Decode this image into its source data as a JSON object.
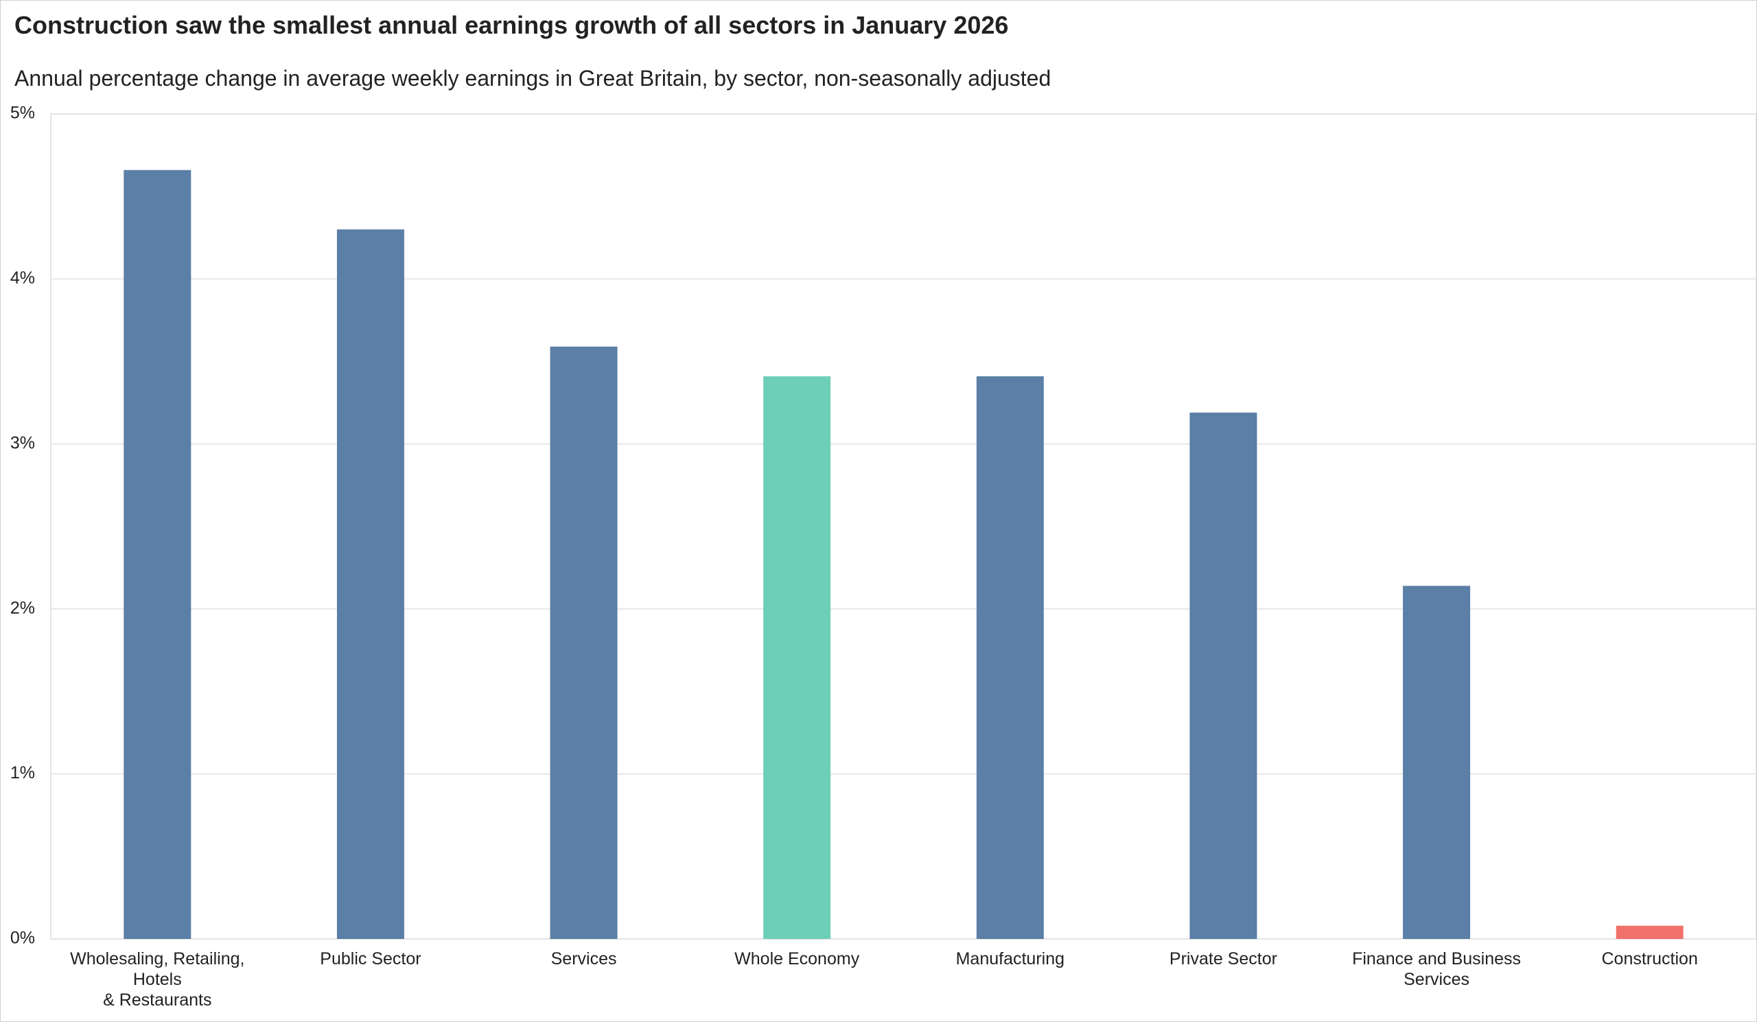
{
  "chart_data": {
    "type": "bar",
    "title": "Construction saw the smallest annual earnings growth of all sectors in January 2026",
    "subtitle": "Annual percentage change in average weekly earnings in Great Britain, by sector, non-seasonally adjusted",
    "categories": [
      "Wholesaling, Retailing,\nHotels\n& Restaurants",
      "Public Sector",
      "Services",
      "Whole Economy",
      "Manufacturing",
      "Private Sector",
      "Finance and Business\nServices",
      "Construction"
    ],
    "values": [
      4.66,
      4.3,
      3.59,
      3.41,
      3.41,
      3.19,
      2.14,
      0.08
    ],
    "colors": [
      "#5b7fa6",
      "#5b7fa6",
      "#5b7fa6",
      "#6dcfb8",
      "#5b7fa6",
      "#5b7fa6",
      "#5b7fa6",
      "#f0706a"
    ],
    "ylim": [
      0,
      5
    ],
    "yticks": [
      {
        "value": 0,
        "label": "0%"
      },
      {
        "value": 1,
        "label": "1%"
      },
      {
        "value": 2,
        "label": "2%"
      },
      {
        "value": 3,
        "label": "3%"
      },
      {
        "value": 4,
        "label": "4%"
      },
      {
        "value": 5,
        "label": "5%"
      }
    ],
    "grid": true
  }
}
